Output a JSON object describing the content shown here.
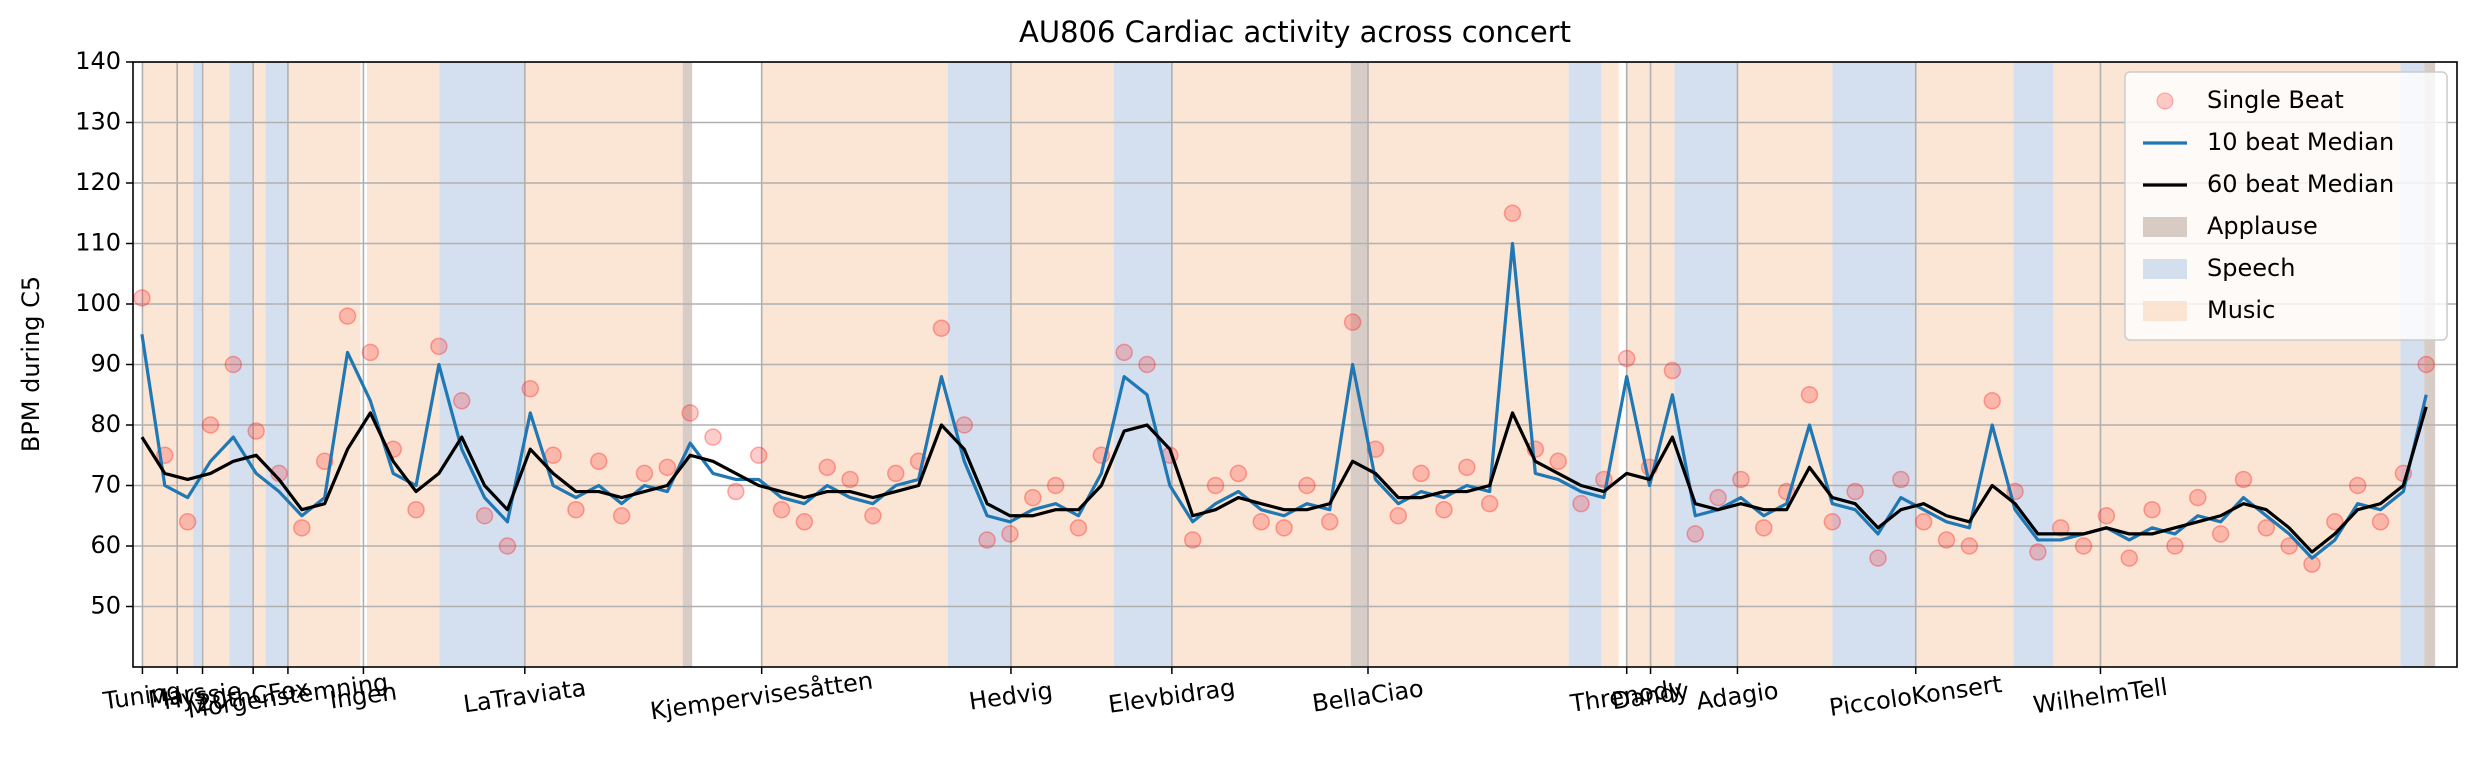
{
  "chart_data": {
    "type": "line",
    "title": "AU806 Cardiac activity across concert",
    "ylabel": "BPM during C5",
    "xlim": [
      0,
      4680
    ],
    "ylim": [
      40,
      140
    ],
    "yticks": [
      50,
      60,
      70,
      80,
      90,
      100,
      110,
      120,
      130,
      140
    ],
    "xticks": [
      {
        "value": 19,
        "label": "Tuning"
      },
      {
        "value": 89,
        "label": "Mars"
      },
      {
        "value": 140,
        "label": "Hyssje"
      },
      {
        "value": 242,
        "label": "20thCFox"
      },
      {
        "value": 312,
        "label": "Morgenstemning"
      },
      {
        "value": 464,
        "label": "Ingen"
      },
      {
        "value": 789,
        "label": "LaTraviata"
      },
      {
        "value": 1266,
        "label": "Kjempervisesåtten"
      },
      {
        "value": 1768,
        "label": "Hedvig"
      },
      {
        "value": 2092,
        "label": "Elevbidrag"
      },
      {
        "value": 2487,
        "label": "BellaCiao"
      },
      {
        "value": 3008,
        "label": "Threnody"
      },
      {
        "value": 3056,
        "label": "Dandy"
      },
      {
        "value": 3231,
        "label": "Adagio"
      },
      {
        "value": 3590,
        "label": "PiccoloKonsert"
      },
      {
        "value": 3962,
        "label": "WilhelmTell"
      }
    ],
    "grid": true,
    "legend": "upper right",
    "x": [
      18,
      64,
      110,
      156,
      202,
      248,
      294,
      340,
      386,
      432,
      478,
      524,
      570,
      616,
      662,
      708,
      754,
      800,
      846,
      892,
      938,
      984,
      1030,
      1076,
      1122,
      1168,
      1214,
      1260,
      1306,
      1352,
      1398,
      1444,
      1490,
      1536,
      1582,
      1628,
      1674,
      1720,
      1766,
      1812,
      1858,
      1904,
      1950,
      1996,
      2042,
      2088,
      2134,
      2180,
      2226,
      2272,
      2318,
      2364,
      2410,
      2456,
      2502,
      2548,
      2594,
      2640,
      2686,
      2732,
      2778,
      2824,
      2870,
      2916,
      2962,
      3008,
      3054,
      3100,
      3146,
      3192,
      3238,
      3284,
      3330,
      3376,
      3422,
      3468,
      3514,
      3560,
      3606,
      3652,
      3698,
      3744,
      3790,
      3836,
      3882,
      3928,
      3974,
      4020,
      4066,
      4112,
      4158,
      4204,
      4250,
      4296,
      4342,
      4388,
      4434,
      4480,
      4526,
      4572,
      4618
    ],
    "series": [
      {
        "name": "Single Beat",
        "kind": "scatter",
        "color": "#ff0000",
        "values": [
          101,
          75,
          64,
          80,
          90,
          79,
          72,
          63,
          74,
          98,
          92,
          76,
          66,
          93,
          84,
          65,
          60,
          86,
          75,
          66,
          74,
          65,
          72,
          73,
          82,
          78,
          69,
          75,
          66,
          64,
          73,
          71,
          65,
          72,
          74,
          96,
          80,
          61,
          62,
          68,
          70,
          63,
          75,
          92,
          90,
          75,
          61,
          70,
          72,
          64,
          63,
          70,
          64,
          97,
          76,
          65,
          72,
          66,
          73,
          67,
          115,
          76,
          74,
          67,
          71,
          91,
          73,
          89,
          62,
          68,
          71,
          63,
          69,
          85,
          64,
          69,
          58,
          71,
          64,
          61,
          60,
          84,
          69,
          59,
          63,
          60,
          65,
          58,
          66,
          60,
          68,
          62,
          71,
          63,
          60,
          57,
          64,
          70,
          64,
          72,
          90
        ]
      },
      {
        "name": "10 beat Median",
        "kind": "line",
        "color": "#1f77b4",
        "values": [
          95,
          70,
          68,
          74,
          78,
          72,
          69,
          65,
          68,
          92,
          84,
          72,
          70,
          90,
          76,
          68,
          64,
          82,
          70,
          68,
          70,
          67,
          70,
          69,
          77,
          72,
          71,
          71,
          68,
          67,
          70,
          68,
          67,
          70,
          71,
          88,
          74,
          65,
          64,
          66,
          67,
          65,
          72,
          88,
          85,
          70,
          64,
          67,
          69,
          66,
          65,
          67,
          66,
          90,
          71,
          67,
          69,
          68,
          70,
          69,
          110,
          72,
          71,
          69,
          68,
          88,
          70,
          85,
          65,
          66,
          68,
          65,
          67,
          80,
          67,
          66,
          62,
          68,
          66,
          64,
          63,
          80,
          66,
          61,
          61,
          62,
          63,
          61,
          63,
          62,
          65,
          64,
          68,
          65,
          62,
          58,
          61,
          67,
          66,
          69,
          85
        ]
      },
      {
        "name": "60 beat Median",
        "kind": "line",
        "color": "#000000",
        "values": [
          78,
          72,
          71,
          72,
          74,
          75,
          71,
          66,
          67,
          76,
          82,
          74,
          69,
          72,
          78,
          70,
          66,
          76,
          72,
          69,
          69,
          68,
          69,
          70,
          75,
          74,
          72,
          70,
          69,
          68,
          69,
          69,
          68,
          69,
          70,
          80,
          76,
          67,
          65,
          65,
          66,
          66,
          70,
          79,
          80,
          76,
          65,
          66,
          68,
          67,
          66,
          66,
          67,
          74,
          72,
          68,
          68,
          69,
          69,
          70,
          82,
          74,
          72,
          70,
          69,
          72,
          71,
          78,
          67,
          66,
          67,
          66,
          66,
          73,
          68,
          67,
          63,
          66,
          67,
          65,
          64,
          70,
          67,
          62,
          62,
          62,
          63,
          62,
          62,
          63,
          64,
          65,
          67,
          66,
          63,
          59,
          62,
          66,
          67,
          70,
          83
        ]
      }
    ],
    "regions": [
      {
        "name": "Applause",
        "color": "#c9bbb3",
        "spans": [
          [
            1107,
            1126
          ],
          [
            2452,
            2487
          ],
          [
            4614,
            4636
          ]
        ]
      },
      {
        "name": "Speech",
        "color": "#c6d6ea",
        "spans": [
          [
            121,
            137
          ],
          [
            194,
            242
          ],
          [
            267,
            312
          ],
          [
            617,
            789
          ],
          [
            1641,
            1768
          ],
          [
            1975,
            2092
          ],
          [
            2891,
            2957
          ],
          [
            3104,
            3231
          ],
          [
            3422,
            3590
          ],
          [
            3787,
            3867
          ],
          [
            4566,
            4614
          ]
        ]
      },
      {
        "name": "Music",
        "color": "#f9dcc6",
        "spans": [
          [
            19,
            121
          ],
          [
            137,
            194
          ],
          [
            242,
            267
          ],
          [
            312,
            458
          ],
          [
            471,
            617
          ],
          [
            789,
            1107
          ],
          [
            1266,
            1641
          ],
          [
            1768,
            1975
          ],
          [
            2092,
            2452
          ],
          [
            2487,
            2891
          ],
          [
            2957,
            2992
          ],
          [
            3008,
            3104
          ],
          [
            3231,
            3422
          ],
          [
            3590,
            3787
          ],
          [
            3867,
            4566
          ]
        ]
      }
    ]
  }
}
